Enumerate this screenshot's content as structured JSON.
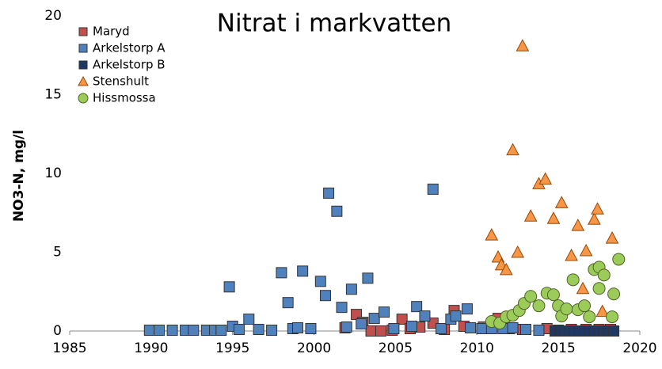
{
  "chart_data": {
    "type": "scatter",
    "title": "Nitrat i markvatten",
    "y_label": "NO3-N, mg/l",
    "xlim": [
      1985,
      2020
    ],
    "xticks": [
      1985,
      1990,
      1995,
      2000,
      2005,
      2010,
      2015,
      2020
    ],
    "ylim": [
      0,
      20
    ],
    "yticks": [
      0,
      5,
      10,
      15,
      20
    ],
    "grid": false,
    "legend": "top-left",
    "series": [
      {
        "name": "Maryd",
        "color": "#c0504d",
        "marker": "square",
        "x": [
          2001.9,
          2002.6,
          2003.0,
          2003.5,
          2004.1,
          2004.8,
          2005.4,
          2005.9,
          2006.5,
          2007.3,
          2008.0,
          2008.6,
          2009.2,
          2010.4,
          2011.3,
          2012.0,
          2012.8,
          2014.3,
          2015.0,
          2015.8,
          2016.7,
          2017.5,
          2018.2
        ],
        "values": [
          0.2,
          1.05,
          0.55,
          0,
          0,
          0.05,
          0.75,
          0.15,
          0.25,
          0.5,
          0.1,
          1.3,
          0.3,
          0.25,
          0.8,
          0.15,
          0.1,
          0.15,
          0.05,
          0.1,
          0.1,
          0.1,
          0.1
        ]
      },
      {
        "name": "Arkelstorp A",
        "color": "#4f81bd",
        "marker": "square",
        "x": [
          1989.9,
          1990.5,
          1991.3,
          1992.1,
          1992.6,
          1993.4,
          1993.9,
          1994.3,
          1994.8,
          1995.0,
          1995.4,
          1996.0,
          1996.6,
          1997.4,
          1998.0,
          1998.4,
          1998.7,
          1999.0,
          1999.3,
          1999.8,
          2000.4,
          2000.7,
          2000.9,
          2001.4,
          2001.7,
          2002.0,
          2002.3,
          2002.9,
          2003.3,
          2003.7,
          2004.3,
          2004.9,
          2006.0,
          2006.3,
          2006.8,
          2007.3,
          2007.8,
          2008.4,
          2008.7,
          2009.4,
          2009.6,
          2010.3,
          2010.9,
          2011.6,
          2012.2,
          2013.0,
          2013.8
        ],
        "values": [
          0.05,
          0.05,
          0.05,
          0.05,
          0.05,
          0.05,
          0.05,
          0.05,
          2.8,
          0.3,
          0.1,
          0.75,
          0.1,
          0.05,
          3.7,
          1.8,
          0.15,
          0.2,
          3.8,
          0.15,
          3.15,
          2.25,
          8.75,
          7.6,
          1.5,
          0.25,
          2.65,
          0.45,
          3.35,
          0.8,
          1.2,
          0.15,
          0.3,
          1.55,
          0.95,
          9.0,
          0.15,
          0.75,
          0.95,
          1.4,
          0.2,
          0.15,
          0.15,
          0.15,
          0.2,
          0.1,
          0.05
        ]
      },
      {
        "name": "Arkelstorp B",
        "color": "#1f3864",
        "marker": "square",
        "x": [
          2014.8,
          2015.1,
          2015.4,
          2015.7,
          2016.0,
          2016.3,
          2016.6,
          2016.9,
          2017.2,
          2017.5,
          2017.8,
          2018.1,
          2018.4
        ],
        "values": [
          0,
          0,
          0,
          0,
          0,
          0,
          0,
          0,
          0,
          0,
          0,
          0,
          0
        ]
      },
      {
        "name": "Stenshult",
        "color": "#f79646",
        "marker": "triangle",
        "x": [
          2010.9,
          2011.3,
          2011.5,
          2011.8,
          2012.2,
          2012.5,
          2012.8,
          2013.3,
          2013.8,
          2014.2,
          2014.7,
          2015.2,
          2015.8,
          2016.2,
          2016.5,
          2016.7,
          2017.2,
          2017.4,
          2017.7,
          2018.3
        ],
        "values": [
          6.1,
          4.7,
          4.2,
          3.9,
          11.5,
          5.0,
          18.1,
          7.3,
          9.35,
          9.65,
          7.15,
          8.15,
          4.8,
          6.7,
          2.7,
          5.1,
          7.1,
          7.75,
          1.25,
          5.9
        ]
      },
      {
        "name": "Hissmossa",
        "color": "#9bcc5a",
        "marker": "circle",
        "x": [
          2010.9,
          2011.4,
          2011.8,
          2012.2,
          2012.6,
          2012.9,
          2013.3,
          2013.8,
          2014.3,
          2014.7,
          2015.0,
          2015.2,
          2015.5,
          2015.9,
          2016.2,
          2016.6,
          2016.9,
          2017.2,
          2017.5,
          2017.5,
          2017.8,
          2018.3,
          2018.4,
          2018.7
        ],
        "values": [
          0.6,
          0.5,
          0.9,
          1.0,
          1.3,
          1.75,
          2.2,
          1.6,
          2.4,
          2.3,
          1.6,
          0.95,
          1.4,
          3.25,
          1.35,
          1.6,
          0.9,
          3.9,
          2.7,
          4.05,
          3.55,
          0.9,
          2.35,
          4.55
        ]
      }
    ]
  }
}
